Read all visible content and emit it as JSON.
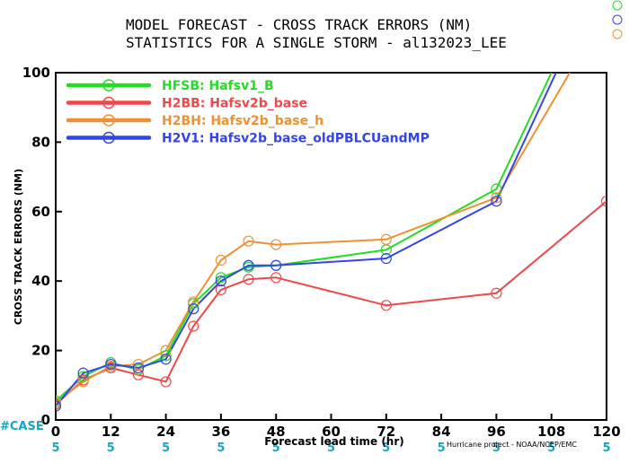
{
  "chart_data": {
    "type": "line",
    "title": "MODEL FORECAST - CROSS TRACK ERRORS (NM)",
    "subtitle": "STATISTICS FOR A SINGLE STORM - al132023_LEE",
    "xlabel": "Forecast lead time (hr)",
    "ylabel": "CROSS TRACK ERRORS (NM)",
    "xlim": [
      0,
      120
    ],
    "ylim": [
      0,
      100
    ],
    "xticks": [
      0,
      12,
      24,
      36,
      48,
      60,
      72,
      84,
      96,
      108,
      120
    ],
    "yticks": [
      0,
      20,
      40,
      60,
      80,
      100
    ],
    "case_label": "#CASE",
    "case_counts": [
      "5",
      "5",
      "5",
      "5",
      "5",
      "5",
      "5",
      "5",
      "5",
      "5",
      "5"
    ],
    "credit": "Hurricane project - NOAA/NCEP/EMC",
    "legend_position": "top-left",
    "series": [
      {
        "name": "HFSB: Hafsv1_B",
        "color": "#22dd22",
        "x": [
          0,
          6,
          12,
          18,
          24,
          30,
          36,
          42,
          48,
          72,
          96,
          108
        ],
        "y": [
          5.5,
          12.5,
          16.5,
          14.5,
          18.5,
          33.5,
          41,
          44,
          44.5,
          49,
          66.5,
          100
        ],
        "markers": [
          0,
          6,
          12,
          18,
          24,
          30,
          36,
          42,
          48,
          72,
          96
        ]
      },
      {
        "name": "H2BB: Hafsv2b_base",
        "color": "#f04848",
        "x": [
          0,
          6,
          12,
          18,
          24,
          30,
          36,
          42,
          48,
          72,
          96,
          120
        ],
        "y": [
          4.5,
          11.5,
          15,
          13,
          11,
          27,
          37.5,
          40.5,
          41,
          33,
          36.5,
          63
        ],
        "markers": [
          0,
          6,
          12,
          18,
          24,
          30,
          36,
          42,
          48,
          72,
          96,
          120
        ]
      },
      {
        "name": "H2BH: Hafsv2b_base_h",
        "color": "#f09030",
        "x": [
          0,
          6,
          12,
          18,
          24,
          30,
          36,
          42,
          48,
          72,
          96,
          112
        ],
        "y": [
          5,
          11,
          15.5,
          16,
          20,
          34,
          46,
          51.5,
          50.5,
          52,
          64,
          100
        ],
        "markers": [
          0,
          6,
          12,
          18,
          24,
          30,
          36,
          42,
          48,
          72,
          96
        ]
      },
      {
        "name": "H2V1: Hafsv2b_base_oldPBLCUandMP",
        "color": "#3344ee",
        "x": [
          0,
          6,
          12,
          18,
          24,
          30,
          36,
          42,
          48,
          72,
          96,
          109
        ],
        "y": [
          4,
          13.5,
          16,
          15,
          17.5,
          32,
          40,
          44.5,
          44.5,
          46.5,
          63,
          100
        ],
        "markers": [
          0,
          6,
          12,
          18,
          24,
          30,
          36,
          42,
          48,
          72,
          96
        ]
      }
    ]
  }
}
